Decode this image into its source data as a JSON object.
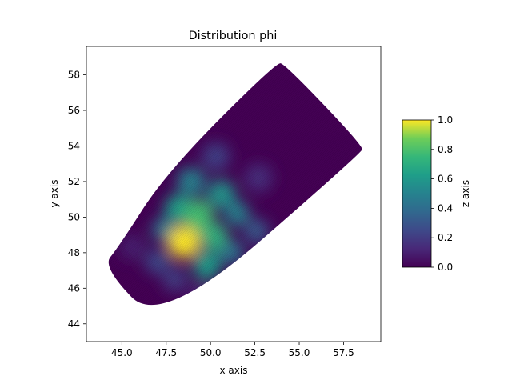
{
  "chart_data": {
    "type": "heatmap",
    "title": "Distribution phi",
    "xlabel": "x axis",
    "ylabel": "y axis",
    "colorbar_label": "z axis",
    "xlim": [
      43.0,
      59.6
    ],
    "ylim": [
      43.0,
      59.6
    ],
    "xticks": [
      45.0,
      47.5,
      50.0,
      52.5,
      55.0,
      57.5
    ],
    "xtick_labels": [
      "45.0",
      "47.5",
      "50.0",
      "52.5",
      "55.0",
      "57.5"
    ],
    "yticks": [
      44,
      46,
      48,
      50,
      52,
      54,
      56,
      58
    ],
    "ytick_labels": [
      "44",
      "46",
      "48",
      "50",
      "52",
      "54",
      "56",
      "58"
    ],
    "colorbar_range": [
      0.0,
      1.0
    ],
    "colorbar_ticks": [
      0.0,
      0.2,
      0.4,
      0.6,
      0.8,
      1.0
    ],
    "colorbar_tick_labels": [
      "0.0",
      "0.2",
      "0.4",
      "0.6",
      "0.8",
      "1.0"
    ],
    "colormap": "viridis",
    "grid": false,
    "domain_boundary": [
      [
        43.9,
        47.2
      ],
      [
        47.2,
        43.8
      ],
      [
        58.5,
        53.6
      ],
      [
        58.6,
        54.0
      ],
      [
        54.2,
        58.6
      ],
      [
        53.7,
        58.7
      ],
      [
        47.5,
        52.5
      ],
      [
        44.8,
        48.3
      ]
    ],
    "hotspots": [
      {
        "x": 48.5,
        "y": 48.6,
        "value": 1.0,
        "radius": 0.9
      },
      {
        "x": 49.3,
        "y": 50.1,
        "value": 0.78,
        "radius": 0.9
      },
      {
        "x": 50.2,
        "y": 48.9,
        "value": 0.72,
        "radius": 0.8
      },
      {
        "x": 48.2,
        "y": 50.5,
        "value": 0.62,
        "radius": 0.8
      },
      {
        "x": 49.8,
        "y": 47.3,
        "value": 0.62,
        "radius": 0.8
      },
      {
        "x": 50.6,
        "y": 51.3,
        "value": 0.58,
        "radius": 0.8
      },
      {
        "x": 48.9,
        "y": 52.0,
        "value": 0.5,
        "radius": 0.8
      },
      {
        "x": 51.5,
        "y": 50.2,
        "value": 0.5,
        "radius": 0.7
      },
      {
        "x": 47.4,
        "y": 49.3,
        "value": 0.45,
        "radius": 0.7
      },
      {
        "x": 51.2,
        "y": 48.0,
        "value": 0.42,
        "radius": 0.7
      },
      {
        "x": 52.6,
        "y": 49.2,
        "value": 0.32,
        "radius": 0.7
      },
      {
        "x": 47.0,
        "y": 47.5,
        "value": 0.25,
        "radius": 0.7
      },
      {
        "x": 50.3,
        "y": 53.4,
        "value": 0.22,
        "radius": 0.8
      },
      {
        "x": 48.0,
        "y": 46.5,
        "value": 0.2,
        "radius": 0.7
      },
      {
        "x": 52.7,
        "y": 52.2,
        "value": 0.15,
        "radius": 0.8
      },
      {
        "x": 49.5,
        "y": 45.6,
        "value": 0.12,
        "radius": 0.7
      },
      {
        "x": 45.6,
        "y": 48.3,
        "value": 0.1,
        "radius": 0.7
      }
    ]
  }
}
